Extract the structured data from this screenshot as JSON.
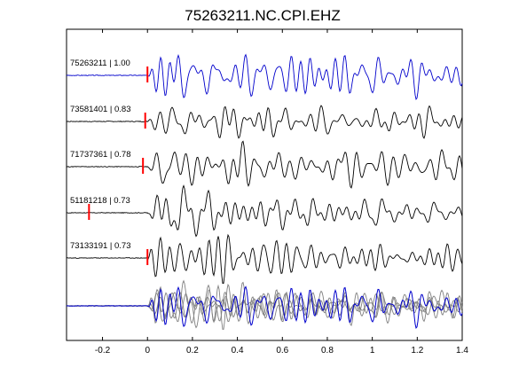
{
  "chart_data": {
    "type": "line",
    "title": "75263211.NC.CPI.EHZ",
    "xlabel": "",
    "ylabel": "",
    "xlim": [
      -0.36,
      1.4
    ],
    "xticks": [
      -0.2,
      0,
      0.2,
      0.4,
      0.6,
      0.8,
      1,
      1.2,
      1.4
    ],
    "xtick_labels": [
      "-0.2",
      "0",
      "0.2",
      "0.4",
      "0.6",
      "0.8",
      "1",
      "1.2",
      "1.4"
    ],
    "grid": false,
    "legend": "none",
    "colors": {
      "reference": "#0000cc",
      "trace": "#000000",
      "pick": "#ff0000",
      "stack": "#808080"
    },
    "traces": [
      {
        "label": "75263211 | 1.00",
        "pick": 0.0,
        "color": "#0000cc",
        "seed": 3
      },
      {
        "label": "73581401 | 0.83",
        "pick": -0.01,
        "color": "#000000",
        "seed": 7
      },
      {
        "label": "71737361 | 0.78",
        "pick": -0.02,
        "color": "#000000",
        "seed": 11
      },
      {
        "label": "51181218 | 0.73",
        "pick": -0.26,
        "color": "#000000",
        "seed": 17
      },
      {
        "label": "73133191 | 0.73",
        "pick": 0.0,
        "color": "#000000",
        "seed": 23
      }
    ],
    "overlay": {
      "seeds": [
        7,
        11,
        17,
        23
      ],
      "reference_seed": 3
    }
  }
}
